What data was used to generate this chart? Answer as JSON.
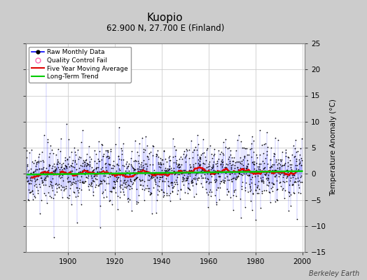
{
  "title": "Kuopio",
  "subtitle": "62.900 N, 27.700 E (Finland)",
  "ylabel": "Temperature Anomaly (°C)",
  "watermark": "Berkeley Earth",
  "xlim": [
    1882,
    2001
  ],
  "ylim": [
    -15,
    25
  ],
  "yticks": [
    -15,
    -10,
    -5,
    0,
    5,
    10,
    15,
    20,
    25
  ],
  "xticks": [
    1900,
    1920,
    1940,
    1960,
    1980,
    2000
  ],
  "start_year": 1882,
  "end_year": 2000,
  "seed": 42,
  "bg_color": "#cccccc",
  "plot_bg_color": "#ffffff",
  "raw_line_color": "#5555ff",
  "raw_dot_color": "#000000",
  "moving_avg_color": "#dd0000",
  "trend_color": "#00cc00",
  "legend_raw_color": "#0000ff",
  "legend_qc_color": "#ff69b4",
  "title_fontsize": 11,
  "subtitle_fontsize": 8.5,
  "label_fontsize": 7.5,
  "tick_fontsize": 7.5,
  "watermark_fontsize": 7
}
